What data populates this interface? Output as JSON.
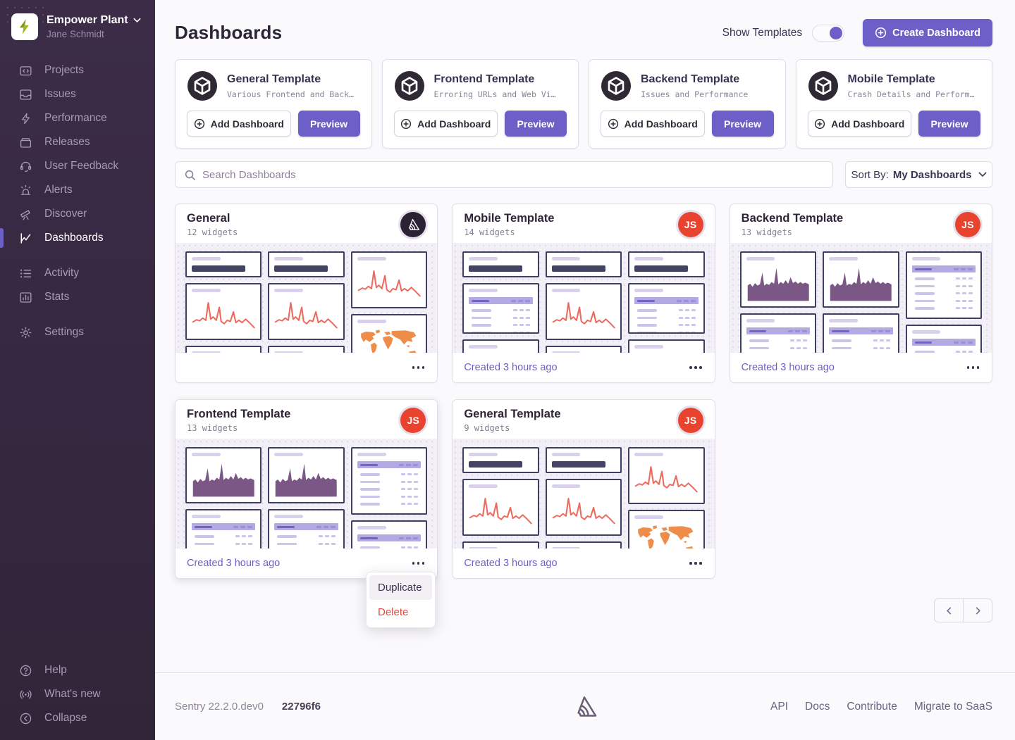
{
  "sidebar": {
    "org": {
      "name": "Empower Plant",
      "user": "Jane Schmidt",
      "logo": "empower-plant-logo"
    },
    "primary": [
      {
        "id": "projects",
        "label": "Projects",
        "icon": "projects-icon"
      },
      {
        "id": "issues",
        "label": "Issues",
        "icon": "issues-icon"
      },
      {
        "id": "performance",
        "label": "Performance",
        "icon": "performance-icon"
      },
      {
        "id": "releases",
        "label": "Releases",
        "icon": "releases-icon"
      },
      {
        "id": "user-feedback",
        "label": "User Feedback",
        "icon": "feedback-icon"
      },
      {
        "id": "alerts",
        "label": "Alerts",
        "icon": "alerts-icon"
      },
      {
        "id": "discover",
        "label": "Discover",
        "icon": "discover-icon"
      },
      {
        "id": "dashboards",
        "label": "Dashboards",
        "icon": "dashboards-icon",
        "active": true
      }
    ],
    "secondary": [
      {
        "id": "activity",
        "label": "Activity",
        "icon": "activity-icon"
      },
      {
        "id": "stats",
        "label": "Stats",
        "icon": "stats-icon"
      }
    ],
    "tertiary": [
      {
        "id": "settings",
        "label": "Settings",
        "icon": "settings-icon"
      }
    ],
    "bottom": [
      {
        "id": "help",
        "label": "Help",
        "icon": "help-icon"
      },
      {
        "id": "whats-new",
        "label": "What's new",
        "icon": "broadcast-icon"
      },
      {
        "id": "collapse",
        "label": "Collapse",
        "icon": "collapse-icon"
      }
    ]
  },
  "header": {
    "title": "Dashboards",
    "show_templates_label": "Show Templates",
    "toggle_on": true,
    "create_button_label": "Create Dashboard"
  },
  "templates": [
    {
      "title": "General Template",
      "description": "Various Frontend and Back…",
      "add_label": "Add Dashboard",
      "preview_label": "Preview"
    },
    {
      "title": "Frontend Template",
      "description": "Erroring URLs and Web Vi…",
      "add_label": "Add Dashboard",
      "preview_label": "Preview"
    },
    {
      "title": "Backend Template",
      "description": "Issues and Performance",
      "add_label": "Add Dashboard",
      "preview_label": "Preview"
    },
    {
      "title": "Mobile Template",
      "description": "Crash Details and Perform…",
      "add_label": "Add Dashboard",
      "preview_label": "Preview"
    }
  ],
  "filters": {
    "search_placeholder": "Search Dashboards",
    "sort_label": "Sort By:",
    "sort_value": "My Dashboards"
  },
  "dashboards": [
    {
      "title": "General",
      "widgets": "12 widgets",
      "avatar": "sentry",
      "avatar_text": "",
      "created": "",
      "preview": [
        [
          "bignum",
          "line",
          "stub"
        ],
        [
          "bignum",
          "line",
          "stub"
        ],
        [
          "line",
          "map"
        ]
      ]
    },
    {
      "title": "Mobile Template",
      "widgets": "14 widgets",
      "avatar": "js",
      "avatar_text": "JS",
      "created": "Created 3 hours ago",
      "preview": [
        [
          "bignum",
          "table",
          "stub"
        ],
        [
          "bignum",
          "line",
          "stub"
        ],
        [
          "bignum",
          "table",
          "stub"
        ]
      ]
    },
    {
      "title": "Backend Template",
      "widgets": "13 widgets",
      "avatar": "js",
      "avatar_text": "JS",
      "created": "Created 3 hours ago",
      "preview": [
        [
          "area",
          "table"
        ],
        [
          "area",
          "table"
        ],
        [
          "tableTall",
          "table"
        ]
      ]
    },
    {
      "title": "Frontend Template",
      "widgets": "13 widgets",
      "avatar": "js",
      "avatar_text": "JS",
      "created": "Created 3 hours ago",
      "raised": true,
      "preview": [
        [
          "area",
          "table"
        ],
        [
          "area",
          "table"
        ],
        [
          "tableTall",
          "table"
        ]
      ]
    },
    {
      "title": "General Template",
      "widgets": "9 widgets",
      "avatar": "js",
      "avatar_text": "JS",
      "created": "Created 3 hours ago",
      "preview": [
        [
          "bignum",
          "line",
          "stub"
        ],
        [
          "bignum",
          "line",
          "stub"
        ],
        [
          "line",
          "map"
        ]
      ]
    }
  ],
  "context_menu": {
    "items": [
      {
        "label": "Duplicate",
        "highlighted": true,
        "danger": false
      },
      {
        "label": "Delete",
        "highlighted": false,
        "danger": true
      }
    ]
  },
  "footer": {
    "version": "Sentry 22.2.0.dev0",
    "build": "22796f6",
    "links": [
      "API",
      "Docs",
      "Contribute",
      "Migrate to SaaS"
    ]
  },
  "colors": {
    "accent": "#6C5FC7",
    "danger": "#E5483D",
    "sidebar_bg": "#352840",
    "avatar_red": "#E8432F",
    "chart_line": "#ED6A5E",
    "chart_area": "#7B5786",
    "map_orange": "#EE8C4A",
    "widget_border": "#3E4063"
  }
}
